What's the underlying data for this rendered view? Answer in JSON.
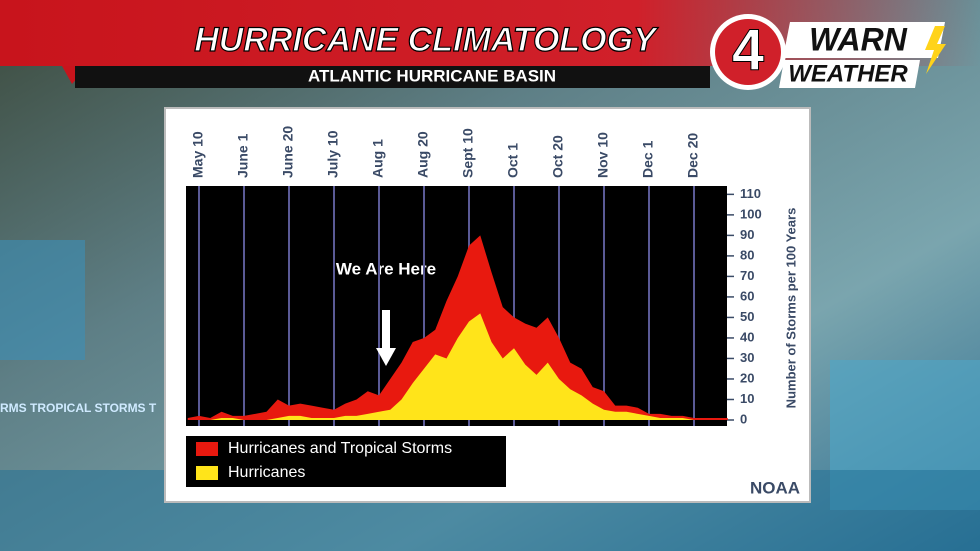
{
  "header": {
    "title": "HURRICANE CLIMATOLOGY",
    "subtitle": "ATLANTIC HURRICANE BASIN"
  },
  "logo": {
    "number": "4",
    "top": "WARN",
    "bottom": "WEATHER"
  },
  "background_text": "RMS  TROPICAL STORMS  T",
  "chart_data": {
    "type": "area",
    "categories": [
      null,
      "May 10",
      null,
      null,
      null,
      "June 1",
      null,
      null,
      null,
      "June 20",
      null,
      null,
      null,
      "July 10",
      null,
      null,
      null,
      "Aug 1",
      null,
      null,
      null,
      "Aug 20",
      null,
      null,
      null,
      "Sept 10",
      null,
      null,
      null,
      "Oct 1",
      null,
      null,
      null,
      "Oct 20",
      null,
      null,
      null,
      "Nov 10",
      null,
      null,
      null,
      "Dec 1",
      null,
      null,
      null,
      "Dec 20",
      null,
      null,
      null
    ],
    "series": [
      {
        "name": "Hurricanes and Tropical Storms",
        "color": "#e8190f",
        "values": [
          1,
          2,
          1,
          4,
          2,
          2,
          3,
          4,
          10,
          7,
          8,
          7,
          6,
          5,
          8,
          10,
          14,
          12,
          20,
          28,
          38,
          40,
          44,
          58,
          70,
          85,
          90,
          72,
          55,
          50,
          47,
          45,
          50,
          40,
          28,
          25,
          16,
          14,
          7,
          7,
          6,
          3,
          3,
          2,
          2,
          1,
          1,
          1,
          1
        ]
      },
      {
        "name": "Hurricanes",
        "color": "#ffe41a",
        "values": [
          0,
          0,
          0,
          1,
          1,
          0,
          0,
          0,
          1,
          2,
          2,
          1,
          1,
          1,
          2,
          2,
          3,
          4,
          5,
          10,
          18,
          25,
          32,
          30,
          40,
          48,
          52,
          38,
          30,
          35,
          27,
          22,
          28,
          20,
          15,
          12,
          8,
          5,
          4,
          4,
          3,
          2,
          1,
          1,
          1,
          0,
          0,
          0,
          0
        ]
      }
    ],
    "ylim": [
      0,
      117
    ],
    "yticks": [
      0,
      10,
      20,
      30,
      40,
      50,
      60,
      70,
      80,
      90,
      100,
      110
    ],
    "y_label": "Number of Storms per 100 Years",
    "annotation": "We Are Here",
    "source": "NOAA"
  }
}
